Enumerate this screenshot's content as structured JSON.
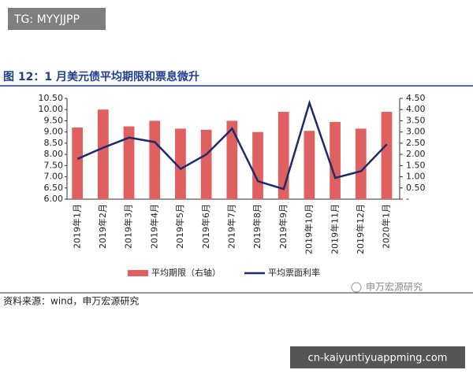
{
  "watermark": "TG: MYYJJPP",
  "source": "资料来源：wind，申万宏源研究",
  "brand_watermark": "申万宏源研究",
  "url_badge": "cn-kaiyuntiyuappming.com",
  "chart_data": {
    "type": "combo",
    "title": "图 12：1 月美元债平均期限和票息微升",
    "categories": [
      "2019年1月",
      "2019年2月",
      "2019年3月",
      "2019年4月",
      "2019年5月",
      "2019年6月",
      "2019年7月",
      "2019年8月",
      "2019年9月",
      "2019年10月",
      "2019年11月",
      "2019年12月",
      "2020年1月"
    ],
    "series": [
      {
        "name": "平均期限（右轴）",
        "type": "bar",
        "color": "#e06060",
        "values": [
          9.2,
          10.0,
          9.25,
          9.5,
          9.15,
          9.1,
          9.5,
          9.0,
          9.9,
          9.05,
          9.45,
          9.15,
          9.9
        ]
      },
      {
        "name": "平均票面利率",
        "type": "line",
        "axis": "y2",
        "color": "#1f2a6b",
        "values": [
          1.8,
          2.3,
          2.75,
          2.55,
          1.35,
          2.0,
          3.15,
          0.8,
          0.45,
          4.3,
          0.95,
          1.25,
          2.45
        ]
      }
    ],
    "ylim": [
      6.0,
      10.5
    ],
    "yticks": [
      {
        "value": 6.0,
        "label": "6.00"
      },
      {
        "value": 6.5,
        "label": "6.50"
      },
      {
        "value": 7.0,
        "label": "7.00"
      },
      {
        "value": 7.5,
        "label": "7.50"
      },
      {
        "value": 8.0,
        "label": "8.00"
      },
      {
        "value": 8.5,
        "label": "8.50"
      },
      {
        "value": 9.0,
        "label": "9.00"
      },
      {
        "value": 9.5,
        "label": "9.50"
      },
      {
        "value": 10.0,
        "label": "10.00"
      },
      {
        "value": 10.5,
        "label": "10.50"
      }
    ],
    "y2lim": [
      0,
      4.5
    ],
    "y2ticks": [
      {
        "value": 0,
        "label": "-"
      },
      {
        "value": 0.5,
        "label": "0.50"
      },
      {
        "value": 1.0,
        "label": "1.00"
      },
      {
        "value": 1.5,
        "label": "1.50"
      },
      {
        "value": 2.0,
        "label": "2.00"
      },
      {
        "value": 2.5,
        "label": "2.50"
      },
      {
        "value": 3.0,
        "label": "3.00"
      },
      {
        "value": 3.5,
        "label": "3.50"
      },
      {
        "value": 4.0,
        "label": "4.00"
      },
      {
        "value": 4.5,
        "label": "4.50"
      }
    ]
  }
}
